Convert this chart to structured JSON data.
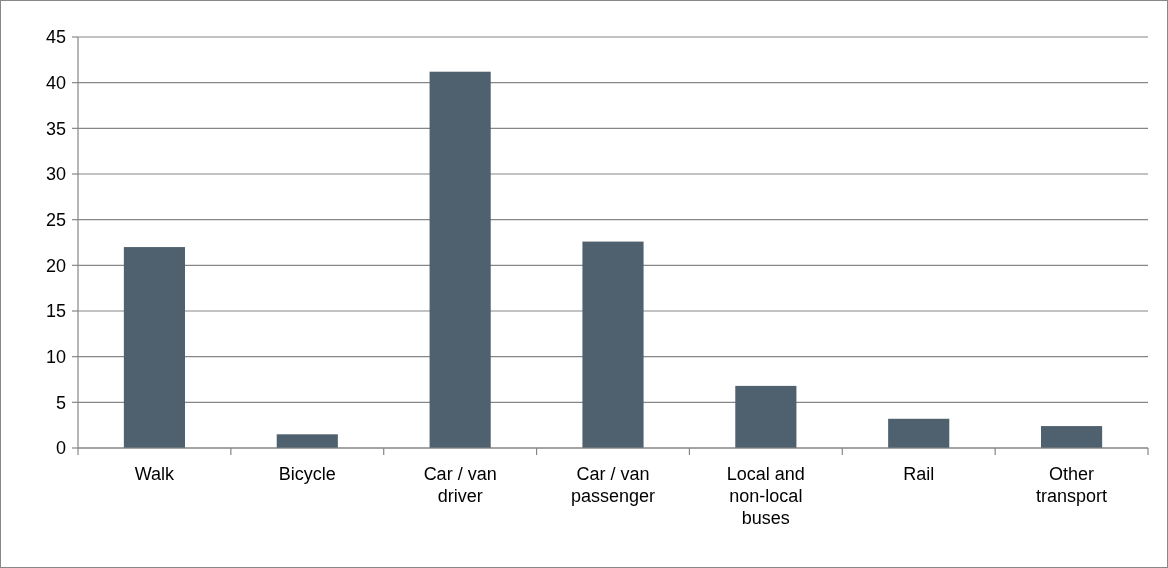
{
  "chart_data": {
    "type": "bar",
    "categories": [
      "Walk",
      "Bicycle",
      "Car / van driver",
      "Car / van passenger",
      "Local and non-local buses",
      "Rail",
      "Other transport"
    ],
    "values": [
      22.0,
      1.5,
      41.2,
      22.6,
      6.8,
      3.2,
      2.4
    ],
    "color": "#4f616e",
    "ylim": [
      0,
      45
    ],
    "yticks": [
      0,
      5,
      10,
      15,
      20,
      25,
      30,
      35,
      40,
      45
    ],
    "grid": "y"
  }
}
